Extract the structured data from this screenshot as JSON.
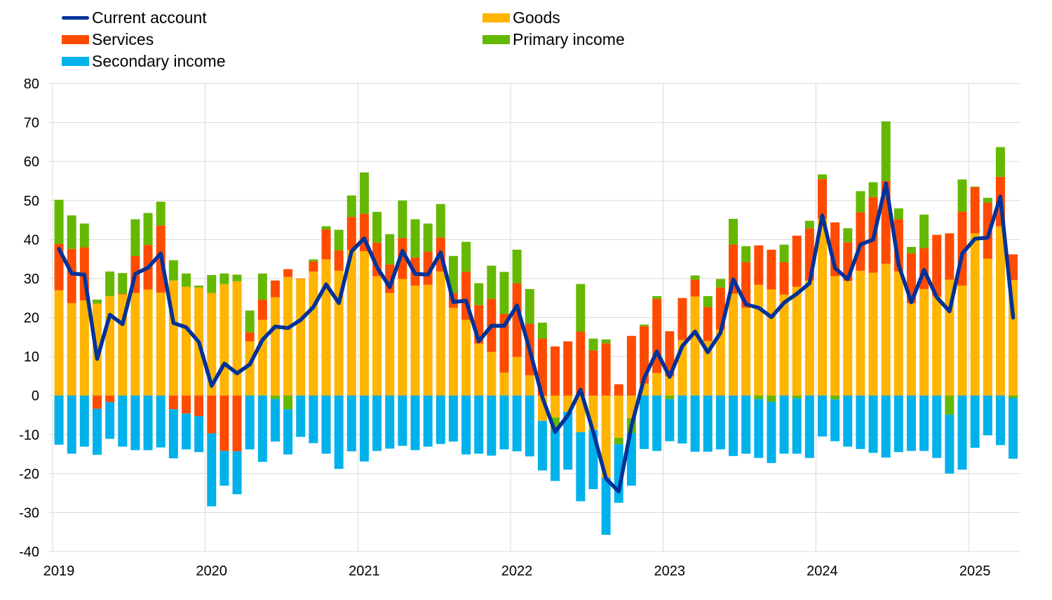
{
  "chart_data": {
    "type": "bar",
    "subtype": "stacked bar with line overlay, monthly",
    "title": "",
    "xlabel": "",
    "ylabel": "",
    "ylim": [
      -40,
      80
    ],
    "yticks": [
      "80",
      "70",
      "60",
      "50",
      "40",
      "30",
      "20",
      "10",
      "0",
      "-10",
      "-20",
      "-30",
      "-40"
    ],
    "ytick_values": [
      80,
      70,
      60,
      50,
      40,
      30,
      20,
      10,
      0,
      -10,
      -20,
      -30,
      -40
    ],
    "xticks": [
      "2019",
      "2020",
      "2021",
      "2022",
      "2023",
      "2024",
      "2025"
    ],
    "start": "2019-01",
    "grid": true,
    "legend_position": "top",
    "legend": {
      "current_account": "Current account",
      "goods": "Goods",
      "services": "Services",
      "primary_income": "Primary income",
      "secondary_income": "Secondary income"
    },
    "colors": {
      "current_account": "#003299",
      "goods": "#ffb400",
      "services": "#ff4b00",
      "primary_income": "#65b800",
      "secondary_income": "#00b1ea"
    },
    "series": [
      {
        "key": "goods",
        "name": "Goods",
        "kind": "bar",
        "values": [
          27,
          23.7,
          24.4,
          23.6,
          25.5,
          25.9,
          26.3,
          27.2,
          26.4,
          29.5,
          27.9,
          27.7,
          26.3,
          28.6,
          29.3,
          13.9,
          19.4,
          25.2,
          30.4,
          29.9,
          31.8,
          34.9,
          32,
          37.3,
          37,
          30.6,
          26.3,
          29.9,
          28.2,
          28.4,
          31.8,
          22.5,
          19.4,
          13.3,
          11.2,
          5.9,
          9.9,
          5.2,
          -6.5,
          -5.6,
          -4.2,
          -9.4,
          -8.9,
          -21,
          -10.8,
          -5.8,
          3.1,
          5.8,
          4.9,
          14.2,
          25.4,
          14,
          16.9,
          26.1,
          22.5,
          28.4,
          27.2,
          25.9,
          27.9,
          29.5,
          45.3,
          30.6,
          29.4,
          32,
          31.5,
          33.8,
          31.8,
          23.7,
          27.3,
          25.4,
          29.7,
          28.2,
          41.6,
          35.1,
          43.4,
          29.6
        ]
      },
      {
        "key": "services",
        "name": "Services",
        "kind": "bar",
        "values": [
          11.9,
          13.9,
          13.6,
          -3.4,
          -1.7,
          0.2,
          9.5,
          11.4,
          17.2,
          -3.5,
          -4.6,
          -5.3,
          -9.7,
          -14.2,
          -14.3,
          2.3,
          5.2,
          4.3,
          2,
          0.1,
          2.6,
          7.7,
          5.2,
          8.5,
          9.6,
          8.6,
          7.3,
          10.5,
          7.2,
          8.5,
          8.7,
          3.8,
          12.3,
          9.9,
          13.6,
          15,
          18.9,
          13.2,
          14.6,
          12.6,
          13.9,
          16.4,
          11.6,
          13.4,
          2.9,
          15.3,
          14.7,
          19,
          11.6,
          10.8,
          4.3,
          8.7,
          10.8,
          12.6,
          11.7,
          10.1,
          10.2,
          8.3,
          13.1,
          13.4,
          10.2,
          13.8,
          9.9,
          15,
          19.4,
          21.2,
          13.4,
          12.8,
          10.5,
          15.8,
          11.9,
          19,
          11.8,
          14.4,
          12.7,
          6.6
        ]
      },
      {
        "key": "primary_income",
        "name": "Primary income",
        "kind": "bar",
        "values": [
          11.3,
          8.6,
          6.1,
          1,
          6.3,
          5.3,
          9.4,
          8.2,
          6.1,
          5.2,
          3.4,
          0.5,
          4.6,
          2.7,
          1.7,
          5.6,
          6.7,
          -0.9,
          -3.5,
          0,
          0.5,
          0.8,
          5.3,
          5.5,
          10.6,
          7.9,
          7.8,
          9.6,
          9.8,
          7.2,
          8.6,
          9.5,
          7.7,
          5.6,
          8.5,
          10.8,
          8.6,
          8.9,
          4.1,
          -3.3,
          0,
          12.2,
          3,
          1,
          -1.7,
          -3.8,
          0.4,
          0.7,
          -0.9,
          0,
          1.1,
          2.8,
          2.2,
          6.6,
          4.1,
          -0.9,
          -1.6,
          4.5,
          -0.7,
          1.9,
          1.2,
          -1,
          3.6,
          5.4,
          3.8,
          15.3,
          2.8,
          1.6,
          8.6,
          0,
          -4.9,
          8.2,
          0.2,
          1.2,
          7.6,
          -0.6
        ]
      },
      {
        "key": "secondary_income",
        "name": "Secondary income",
        "kind": "bar",
        "values": [
          -12.6,
          -14.9,
          -13.1,
          -11.8,
          -9.4,
          -13.1,
          -14,
          -14,
          -13.3,
          -12.6,
          -9.2,
          -9.2,
          -18.7,
          -8.9,
          -11,
          -13.8,
          -17,
          -10.9,
          -11.6,
          -10.6,
          -12.2,
          -14.9,
          -18.8,
          -14.3,
          -16.9,
          -14.2,
          -13.6,
          -12.9,
          -14,
          -13.1,
          -12.4,
          -11.8,
          -15.1,
          -14.9,
          -15.4,
          -13.8,
          -14.3,
          -15.6,
          -12.7,
          -13,
          -14.8,
          -17.7,
          -15.1,
          -14.7,
          -15,
          -13.5,
          -13.7,
          -14.2,
          -10.8,
          -12.3,
          -14.4,
          -14.4,
          -13.8,
          -15.5,
          -14.9,
          -15.1,
          -15.7,
          -14.9,
          -14.2,
          -16,
          -10.5,
          -10.7,
          -13.1,
          -13.7,
          -14.7,
          -15.9,
          -14.5,
          -14.2,
          -14.2,
          -16,
          -15.1,
          -19,
          -13.4,
          -10.2,
          -12.7,
          -15.6
        ]
      },
      {
        "key": "current_account",
        "name": "Current account",
        "kind": "line",
        "values": [
          37.6,
          31.3,
          31,
          9.4,
          20.7,
          18.3,
          31.2,
          32.8,
          36.4,
          18.6,
          17.5,
          13.7,
          2.5,
          8.2,
          5.7,
          8,
          14.3,
          17.7,
          17.3,
          19.4,
          22.7,
          28.5,
          23.7,
          37,
          40.3,
          32.9,
          27.8,
          37.1,
          31.2,
          31,
          36.7,
          24,
          24.3,
          13.9,
          17.9,
          17.9,
          23.1,
          11.7,
          -0.5,
          -9.3,
          -5.1,
          1.5,
          -9.4,
          -21.3,
          -24.6,
          -7.8,
          4.5,
          11.3,
          4.8,
          12.7,
          16.4,
          11.1,
          16.1,
          29.8,
          23.4,
          22.5,
          20.1,
          23.8,
          26.1,
          28.8,
          46.2,
          32.7,
          29.8,
          38.7,
          40,
          54.4,
          33.5,
          23.9,
          32.2,
          25.2,
          21.6,
          36.4,
          40.2,
          40.5,
          51,
          20
        ]
      }
    ]
  }
}
